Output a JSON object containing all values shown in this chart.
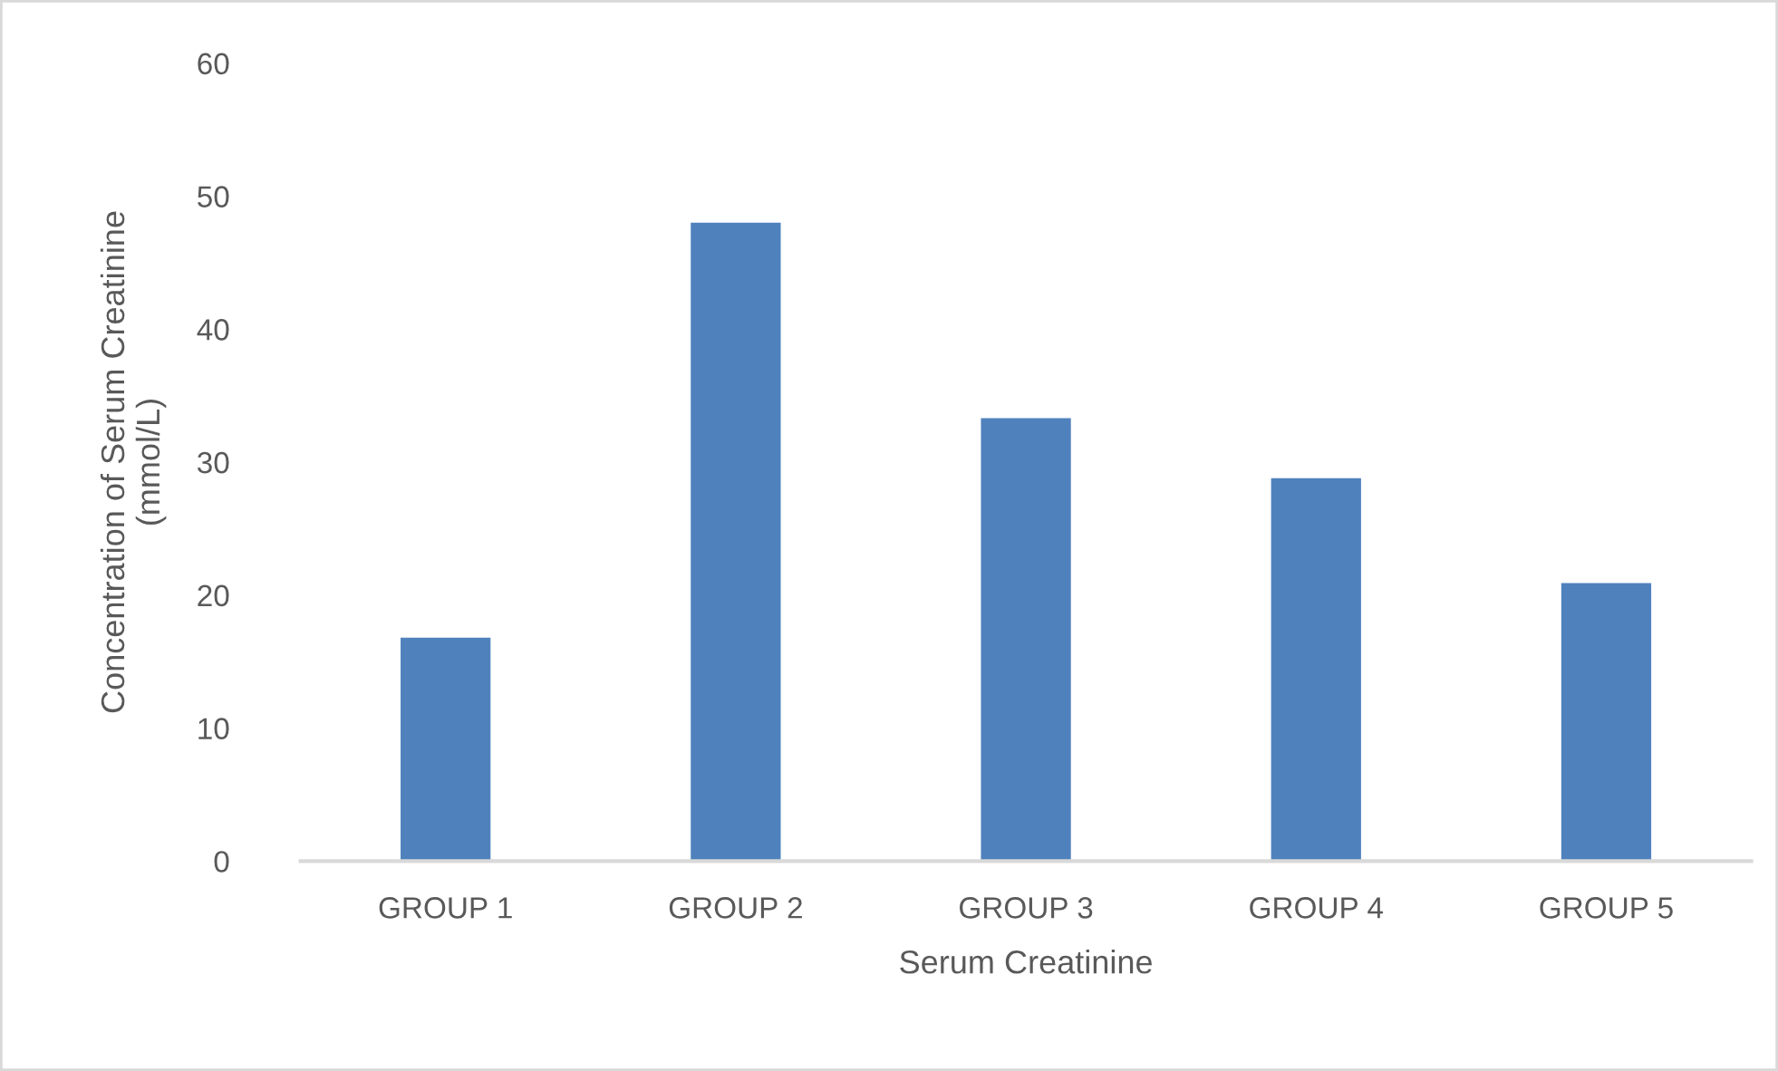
{
  "chart_data": {
    "type": "bar",
    "xlabel": "Serum Creatinine",
    "ylabel": "Concentration of Serum Creatinine\n(mmol/L)",
    "categories": [
      "GROUP 1",
      "GROUP 2",
      "GROUP 3",
      "GROUP 4",
      "GROUP 5"
    ],
    "values": [
      16.8,
      48.0,
      33.3,
      28.8,
      20.9
    ],
    "color": "#4f81bd",
    "ylim": [
      0,
      60
    ],
    "yticks": [
      0,
      10,
      20,
      30,
      40,
      50,
      60
    ],
    "grid": false,
    "legend": false
  }
}
